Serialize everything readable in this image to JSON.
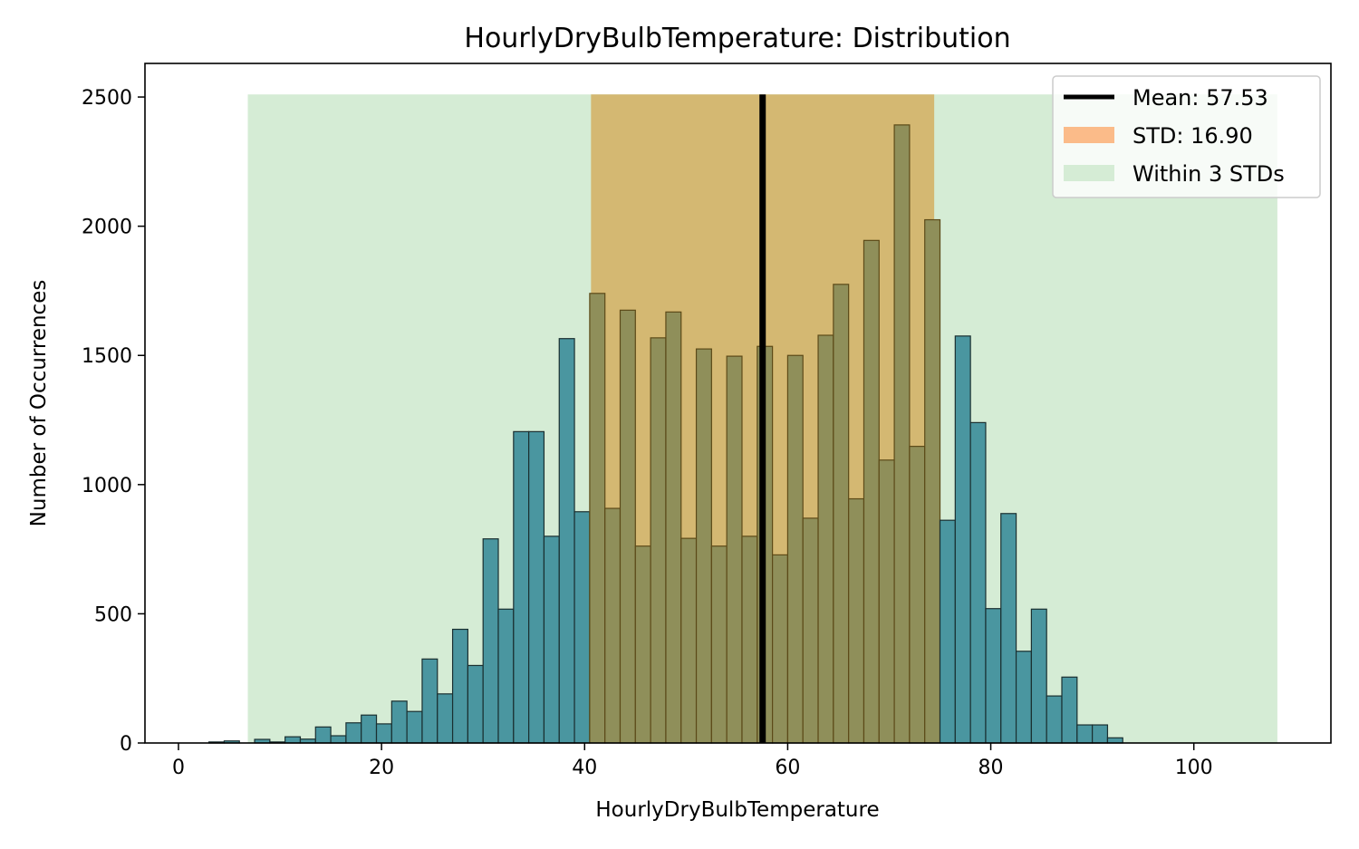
{
  "chart_data": {
    "type": "bar",
    "title": "HourlyDryBulbTemperature: Distribution",
    "xlabel": "HourlyDryBulbTemperature",
    "ylabel": "Number of Occurrences",
    "xlim": [
      -3.3,
      113.5
    ],
    "ylim": [
      0,
      2630
    ],
    "xticks": [
      0,
      20,
      40,
      60,
      80,
      100
    ],
    "yticks": [
      0,
      500,
      1000,
      1500,
      2000,
      2500
    ],
    "grid": false,
    "legend_position": "top-right",
    "bin_start": 0,
    "bin_width": 1.5,
    "counts": [
      0,
      0,
      4,
      8,
      0,
      14,
      4,
      24,
      15,
      62,
      28,
      78,
      108,
      74,
      162,
      122,
      325,
      190,
      440,
      300,
      790,
      518,
      1205,
      1205,
      800,
      1565,
      895,
      1740,
      908,
      1675,
      762,
      1568,
      1668,
      792,
      1525,
      762,
      1497,
      800,
      1535,
      728,
      1500,
      870,
      1578,
      1775,
      945,
      1945,
      1095,
      2392,
      1148,
      2025,
      862,
      1575,
      1240,
      520,
      888,
      355,
      518,
      182,
      255,
      70,
      70,
      20,
      0,
      0,
      0,
      0,
      0,
      0
    ],
    "mean": 57.53,
    "std": 16.9,
    "std_band": [
      40.63,
      74.43
    ],
    "three_std_band": [
      6.83,
      108.23
    ],
    "band_top": 2510,
    "legend": [
      "Mean: 57.53",
      "STD: 16.90",
      "Within 3 STDs"
    ],
    "colors": {
      "bar_fill": "#4a96a0",
      "bar_edge": "#1a2f30",
      "bar_fill_std": "#8f8f5a",
      "bar_edge_std": "#5c4a18",
      "std_band": "#d4b872",
      "std_legend": "#fbbb89",
      "three_std_band": "#d5ecd5",
      "mean_line": "#000000"
    }
  }
}
